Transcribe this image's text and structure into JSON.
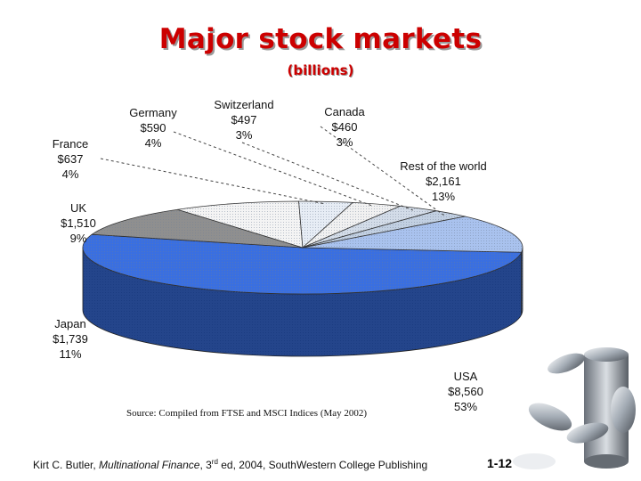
{
  "slide": {
    "title": "Major stock markets",
    "subtitle": "(billions)",
    "source": "Source: Compiled from FTSE and MSCI Indices (May 2002)",
    "footer": {
      "author": "Kirt C. Butler, ",
      "book": "Multinational Finance",
      "edition_pre": ", 3",
      "edition_sup": "rd",
      "edition_post": " ed, 2004, SouthWestern College Publishing"
    },
    "page_number": "1-12"
  },
  "chart_data": {
    "type": "pie",
    "title": "Major stock markets",
    "subtitle": "(billions)",
    "units": "billions of dollars",
    "three_d": true,
    "slices": [
      {
        "label": "USA",
        "value_text": "$8,560",
        "value": 8560,
        "percent_text": "53%",
        "percent": 53,
        "color": "#3a6fe0"
      },
      {
        "label": "Japan",
        "value_text": "$1,739",
        "value": 1739,
        "percent_text": "11%",
        "percent": 11,
        "color": "#8f8f8f"
      },
      {
        "label": "UK",
        "value_text": "$1,510",
        "value": 1510,
        "percent_text": "9%",
        "percent": 9,
        "color": "#f4f4f4"
      },
      {
        "label": "France",
        "value_text": "$637",
        "value": 637,
        "percent_text": "4%",
        "percent": 4,
        "color": "#e7edf5"
      },
      {
        "label": "Germany",
        "value_text": "$590",
        "value": 590,
        "percent_text": "4%",
        "percent": 4,
        "color": "#f1f1f1"
      },
      {
        "label": "Switzerland",
        "value_text": "$497",
        "value": 497,
        "percent_text": "3%",
        "percent": 3,
        "color": "#d3dce8"
      },
      {
        "label": "Canada",
        "value_text": "$460",
        "value": 460,
        "percent_text": "3%",
        "percent": 3,
        "color": "#c2d0e2"
      },
      {
        "label": "Rest of the world",
        "value_text": "$2,161",
        "value": 2161,
        "percent_text": "13%",
        "percent": 13,
        "color": "#a9c2ee"
      }
    ]
  }
}
